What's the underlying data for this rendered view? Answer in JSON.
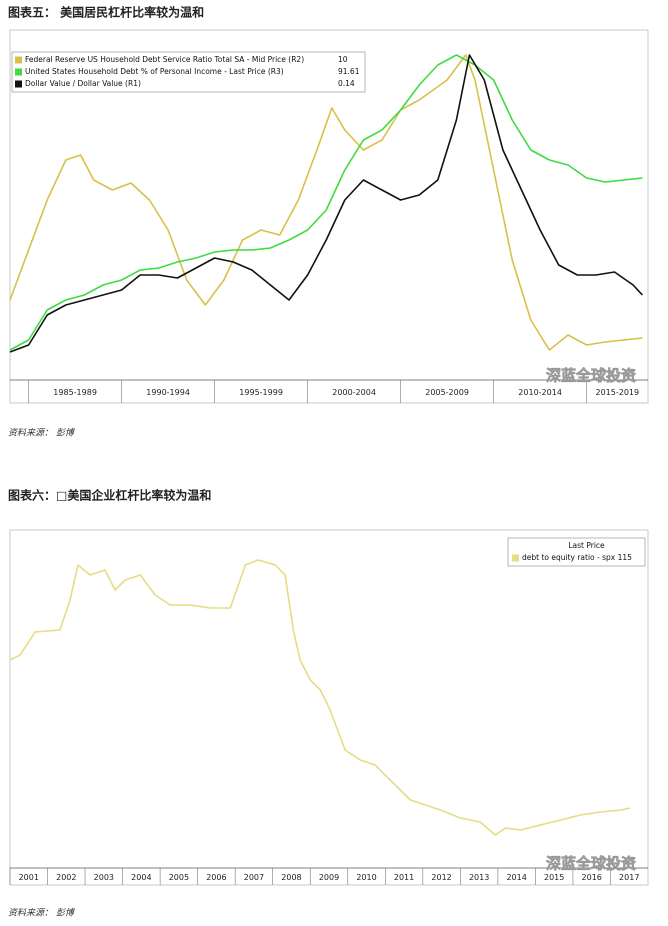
{
  "captions": [
    {
      "title": "图表五：  美国居民杠杆比率较为温和",
      "source": "资料来源：  彭博"
    },
    {
      "title": "图表六：□美国企业杠杆比率较为温和",
      "source": "资料来源：  彭博"
    }
  ],
  "watermark": "深蓝全球投资",
  "chart_data": [
    {
      "type": "line",
      "categories": [
        "1985-1989",
        "1990-1994",
        "1995-1999",
        "2000-2004",
        "2005-2009",
        "2010-2014",
        "2015-2019"
      ],
      "xlim": [
        1984,
        2018.3
      ],
      "ylim": [
        0,
        342
      ],
      "legend": "top-left",
      "series": [
        {
          "name": "Federal Reserve US Household Debt Service Ratio Total SA - Mid Price (R2)",
          "last_price": 10,
          "color": "#d8c04a",
          "x": [
            1984,
            1985,
            1986,
            1987,
            1987.8,
            1988.5,
            1989.5,
            1990.5,
            1991.5,
            1992.5,
            1993.5,
            1994.5,
            1995.5,
            1996.5,
            1997.5,
            1998.5,
            1999.5,
            2000.5,
            2001.3,
            2002,
            2003,
            2004,
            2005,
            2006,
            2007.5,
            2008.5,
            2009,
            2010,
            2011,
            2012,
            2013,
            2014,
            2015,
            2016,
            2017,
            2018
          ],
          "values": [
            80,
            130,
            180,
            220,
            225,
            200,
            190,
            197,
            180,
            150,
            100,
            75,
            100,
            140,
            150,
            145,
            180,
            230,
            272,
            250,
            230,
            240,
            270,
            280,
            300,
            325,
            300,
            210,
            120,
            60,
            30,
            45,
            35,
            38,
            40,
            42
          ]
        },
        {
          "name": "United States Household Debt % of Personal Income - Last Price (R3)",
          "last_price": 91.61,
          "color": "#3fdc3f",
          "x": [
            1984,
            1985,
            1986,
            1987,
            1988,
            1989,
            1990,
            1991,
            1992,
            1993,
            1994,
            1995,
            1996,
            1997,
            1998,
            1999,
            2000,
            2001,
            2002,
            2003,
            2004,
            2005,
            2006,
            2007,
            2008,
            2009,
            2010,
            2011,
            2012,
            2013,
            2014,
            2015,
            2016,
            2017,
            2018
          ],
          "values": [
            30,
            40,
            70,
            80,
            85,
            95,
            100,
            110,
            112,
            118,
            122,
            128,
            130,
            130,
            132,
            140,
            150,
            170,
            210,
            240,
            250,
            270,
            295,
            315,
            325,
            315,
            300,
            260,
            230,
            220,
            215,
            202,
            198,
            200,
            202
          ]
        },
        {
          "name": "Dollar Value / Dollar Value (R1)",
          "last_price": 0.14,
          "color": "#111111",
          "x": [
            1984,
            1985,
            1986,
            1987,
            1988,
            1989,
            1990,
            1991,
            1992,
            1993,
            1994,
            1995,
            1996,
            1997,
            1998,
            1999,
            2000,
            2001,
            2002,
            2003,
            2004,
            2005,
            2006,
            2007,
            2008,
            2008.7,
            2009.5,
            2010.5,
            2011.5,
            2012.5,
            2013.5,
            2014.5,
            2015.5,
            2016.5,
            2017.5,
            2018
          ],
          "values": [
            28,
            35,
            65,
            75,
            80,
            85,
            90,
            105,
            105,
            102,
            112,
            122,
            118,
            110,
            95,
            80,
            105,
            140,
            180,
            200,
            190,
            180,
            185,
            200,
            260,
            325,
            300,
            230,
            190,
            150,
            115,
            105,
            105,
            108,
            95,
            85
          ]
        }
      ]
    },
    {
      "type": "line",
      "categories": [
        "2001",
        "2002",
        "2003",
        "2004",
        "2005",
        "2006",
        "2007",
        "2008",
        "2009",
        "2010",
        "2011",
        "2012",
        "2013",
        "2014",
        "2015",
        "2016",
        "2017"
      ],
      "xlim": [
        2001,
        2018
      ],
      "ylim": [
        0,
        338
      ],
      "legend": "top-right",
      "legend_title": "Last Price",
      "series": [
        {
          "name": "debt to equity ratio - spx 115",
          "color": "#e6dc84",
          "x": [
            2001.0,
            2001.27,
            2001.67,
            2002.33,
            2002.6,
            2002.81,
            2003.13,
            2003.53,
            2003.8,
            2004.07,
            2004.47,
            2004.87,
            2005.27,
            2005.8,
            2006.33,
            2006.87,
            2007.27,
            2007.61,
            2008.07,
            2008.33,
            2008.55,
            2008.73,
            2009.0,
            2009.27,
            2009.53,
            2009.93,
            2010.33,
            2010.73,
            2011.13,
            2011.67,
            2012.07,
            2012.47,
            2013.0,
            2013.53,
            2013.93,
            2014.2,
            2014.6,
            2015.13,
            2015.67,
            2016.2,
            2016.73,
            2017.27,
            2017.53
          ],
          "values": [
            208,
            213,
            236,
            238,
            268,
            303,
            293,
            298,
            278,
            288,
            293,
            273,
            263,
            263,
            260,
            260,
            303,
            308,
            303,
            293,
            238,
            208,
            188,
            178,
            158,
            118,
            108,
            103,
            88,
            68,
            63,
            58,
            50,
            46,
            33,
            40,
            38,
            43,
            48,
            53,
            56,
            58,
            60
          ]
        }
      ]
    }
  ]
}
